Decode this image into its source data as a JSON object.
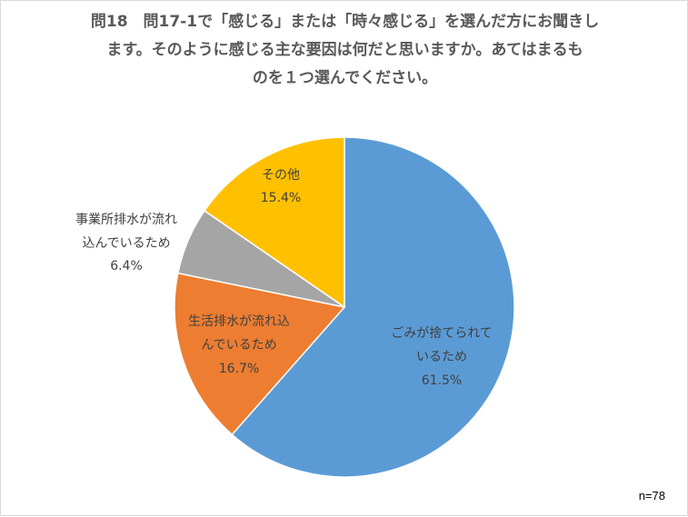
{
  "chart_data": {
    "type": "pie",
    "title_lines": [
      "問18　問17-1で「感じる」または「時々感じる」を選んだ方にお聞きし",
      "ます。そのように感じる主な要因は何だと思いますか。あてはまるも",
      "のを１つ選んでください。"
    ],
    "slices": [
      {
        "label_lines": [
          "ごみが捨てられて",
          "いるため"
        ],
        "percent_label": "61.5%",
        "value": 61.5,
        "color": "#5b9bd5"
      },
      {
        "label_lines": [
          "生活排水が流れ込",
          "んでいるため"
        ],
        "percent_label": "16.7%",
        "value": 16.7,
        "color": "#ed7d31"
      },
      {
        "label_lines": [
          "事業所排水が流れ",
          "込んでいるため"
        ],
        "percent_label": "6.4%",
        "value": 6.4,
        "color": "#a5a5a5"
      },
      {
        "label_lines": [
          "その他"
        ],
        "percent_label": "15.4%",
        "value": 15.4,
        "color": "#ffc000"
      }
    ],
    "note": "n=78"
  }
}
